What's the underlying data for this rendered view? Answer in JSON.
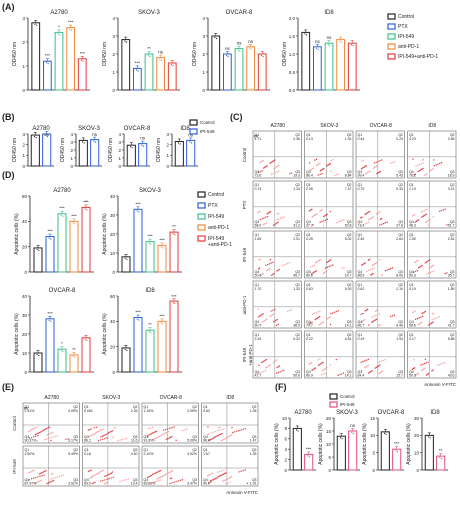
{
  "panel_labels": {
    "A": "(A)",
    "B": "(B)",
    "C": "(C)",
    "D": "(D)",
    "E": "(E)",
    "F": "(F)"
  },
  "colors": {
    "Control": "#222222",
    "PTX": "#2b5fd9",
    "IPI-549": "#3dbf8a",
    "anti-PD-1": "#f08a3c",
    "IPI-549+anti-PD-1": "#e03a3a",
    "F_control": "#222222",
    "F_ipi": "#e0507a"
  },
  "panelA": {
    "legend": [
      "Control",
      "PTX",
      "IPI-549",
      "anti-PD-1",
      "IPI-549+anti-PD-1"
    ],
    "ylabel": "OD450 nm",
    "charts": [
      {
        "title": "A2780",
        "values": [
          2.8,
          1.2,
          2.4,
          2.6,
          1.3
        ],
        "ylim": [
          0,
          3
        ],
        "yticks": [
          "0",
          "1",
          "2",
          "3"
        ],
        "sig": [
          "***",
          "*",
          "***",
          "***"
        ]
      },
      {
        "title": "SKOV-3",
        "values": [
          2.8,
          1.2,
          2.0,
          1.8,
          1.5
        ],
        "ylim": [
          0,
          4
        ],
        "yticks": [
          "0",
          "1",
          "2",
          "3",
          "4"
        ],
        "sig": [
          "***",
          "**",
          "ns"
        ]
      },
      {
        "title": "OVCAR-8",
        "values": [
          3.0,
          2.0,
          2.3,
          2.4,
          2.0
        ],
        "ylim": [
          0,
          4
        ],
        "yticks": [
          "0",
          "1",
          "2",
          "3",
          "4"
        ],
        "sig": [
          "ns",
          "ns",
          "ns"
        ]
      },
      {
        "title": "ID8",
        "values": [
          1.6,
          1.2,
          1.3,
          1.4,
          1.3
        ],
        "ylim": [
          0,
          2
        ],
        "yticks": [
          "0.0",
          "0.5",
          "1.0",
          "1.5",
          "2.0"
        ],
        "sig": [
          "ns",
          "ns"
        ]
      }
    ]
  },
  "panelB": {
    "legend": [
      "Control",
      "IPI-549"
    ],
    "ylabel": "OD450 nm",
    "charts": [
      {
        "title": "A2780",
        "values": [
          2.9,
          3.0
        ],
        "yticks": [
          "0",
          "1",
          "2",
          "3"
        ],
        "sig": "ns"
      },
      {
        "title": "SKOV-3",
        "values": [
          3.2,
          3.3
        ],
        "yticks": [
          "0",
          "1",
          "2",
          "3",
          "4"
        ],
        "sig": "ns"
      },
      {
        "title": "OVCAR-8",
        "values": [
          2.6,
          2.8
        ],
        "yticks": [
          "0",
          "1",
          "2",
          "3",
          "4"
        ],
        "sig": "ns"
      },
      {
        "title": "ID8",
        "values": [
          2.3,
          2.4
        ],
        "yticks": [
          "0",
          "1",
          "2",
          "3"
        ],
        "sig": "ns"
      }
    ]
  },
  "panelC": {
    "cols": [
      "A2780",
      "SKOV-3",
      "OVCAR-8",
      "ID8"
    ],
    "rows": [
      "Control",
      "PTX",
      "IPI-549",
      "anti-PD-1",
      "IPI-549\n+anti-PD-1"
    ],
    "xlabel": "Annexin V-FITC",
    "ylabel": "PI",
    "quads": [
      [
        [
          "4.71",
          "2.36",
          "73.6",
          "19.3"
        ],
        [
          "0.13",
          "1.92",
          "88.4",
          "8.84"
        ],
        [
          "0.44",
          "0.23",
          "99.4",
          "5.43"
        ],
        [
          "4.23",
          "0.96",
          "76.2",
          "18.9"
        ]
      ],
      [
        [
          "0.74",
          "1.24",
          "68.0",
          "31.2"
        ],
        [
          "2.05",
          "7.47",
          "37.7",
          "52.8"
        ],
        [
          "0.79",
          "0.33",
          "71.1",
          "27.8"
        ],
        [
          "1.13",
          "3.21",
          "48.3",
          "51.7"
        ]
      ],
      [
        [
          "1.65",
          "2.01",
          "50.8",
          "45.7"
        ],
        [
          "0.25",
          "5.02",
          "80.8",
          "14.7"
        ],
        [
          "2.49",
          "2.64",
          "86.9",
          "8.00"
        ],
        [
          "1.50",
          "2.52",
          "60.3",
          "35.7"
        ]
      ],
      [
        [
          "1.70",
          "1.32",
          "60.7",
          "38.5"
        ],
        [
          "0.63",
          "5.93",
          "79.7",
          "14.1"
        ],
        [
          "0.62",
          "2.19",
          "86.7",
          "9.46"
        ],
        [
          "0.19",
          "1.55",
          "58.6",
          "41.7"
        ]
      ],
      [
        [
          "2.34",
          "5.32",
          "41.7",
          "50.6"
        ],
        [
          "0.22",
          "6.51",
          "80.9",
          "14.1"
        ],
        [
          "0.19",
          "1.94",
          "84.4",
          "15.7"
        ],
        [
          "0.17",
          "5.86",
          "50.3",
          "43.6"
        ]
      ]
    ]
  },
  "panelD": {
    "legend": [
      "Control",
      "PTX",
      "IPI-549",
      "anti-PD-1",
      "IPI-549\n+anti-PD-1"
    ],
    "ylabel": "Apoptotic cells (%)",
    "charts": [
      {
        "title": "A2780",
        "values": [
          19,
          28,
          46,
          40,
          51
        ],
        "ylim": [
          0,
          60
        ],
        "yticks": [
          "0",
          "20",
          "40",
          "60"
        ],
        "sig": [
          "***",
          "***",
          "***",
          "***",
          "*"
        ]
      },
      {
        "title": "SKOV-3",
        "values": [
          8,
          33,
          16,
          14,
          21
        ],
        "ylim": [
          0,
          40
        ],
        "yticks": [
          "0",
          "10",
          "20",
          "30",
          "40"
        ],
        "sig": [
          "***",
          "***",
          "***",
          "**"
        ]
      },
      {
        "title": "OVCAR-8",
        "values": [
          10,
          28,
          12,
          9,
          18
        ],
        "ylim": [
          0,
          40
        ],
        "yticks": [
          "0",
          "10",
          "20",
          "30",
          "40"
        ],
        "sig": [
          "***",
          "*",
          "**"
        ]
      },
      {
        "title": "ID8",
        "values": [
          19,
          43,
          33,
          40,
          56
        ],
        "ylim": [
          0,
          60
        ],
        "yticks": [
          "0",
          "20",
          "40",
          "60"
        ],
        "sig": [
          "***",
          "**",
          "***",
          "***"
        ]
      }
    ]
  },
  "panelE": {
    "cols": [
      "A2780",
      "SKOV-3",
      "OVCAR-8",
      "ID8"
    ],
    "rows": [
      "Control",
      "IPI-549"
    ],
    "xlabel": "Annexin V-FITC",
    "ylabel": "PI",
    "quads": [
      [
        [
          "2.41%",
          "4.05%",
          "90.37%",
          "3.17%"
        ],
        [
          "0.062",
          "2.26",
          "86.2",
          "11.6"
        ],
        [
          "1.15%",
          "2.99%",
          "91.8%",
          "5.09%"
        ],
        [
          "0.83",
          "1.05",
          "98.0",
          "1.47"
        ]
      ],
      [
        [
          "2.50%",
          "5.49%",
          "87.97%",
          "3.51%"
        ],
        [
          "0.16",
          "4.40",
          "83.0",
          "13.4"
        ],
        [
          "2.10%",
          "4.92%",
          "89.51%",
          "3.47%"
        ],
        [
          "1.57",
          "1.28",
          "96.6",
          "1.01"
        ]
      ]
    ]
  },
  "panelF": {
    "legend": [
      "Control",
      "IPI-549"
    ],
    "ylabel": "Apoptotic cells (%)",
    "charts": [
      {
        "title": "A2780",
        "values": [
          8,
          3
        ],
        "ylim": [
          0,
          10
        ],
        "yticks": [
          "0",
          "2",
          "4",
          "6",
          "8",
          "10"
        ],
        "sig": "***"
      },
      {
        "title": "SKOV-3",
        "values": [
          13,
          15
        ],
        "ylim": [
          0,
          20
        ],
        "yticks": [
          "0",
          "5",
          "10",
          "15",
          "20"
        ],
        "sig": "ns"
      },
      {
        "title": "OVCAR-8",
        "values": [
          11,
          6
        ],
        "ylim": [
          0,
          15
        ],
        "yticks": [
          "0",
          "5",
          "10",
          "15"
        ],
        "sig": "***"
      },
      {
        "title": "ID8",
        "values": [
          20,
          8
        ],
        "ylim": [
          0,
          30
        ],
        "yticks": [
          "0",
          "10",
          "20",
          "30"
        ],
        "sig": "**"
      }
    ]
  },
  "chart_data": [
    {
      "type": "bar",
      "panel": "A",
      "title": "A2780",
      "categories": [
        "Control",
        "PTX",
        "IPI-549",
        "anti-PD-1",
        "IPI-549+anti-PD-1"
      ],
      "values": [
        2.8,
        1.2,
        2.4,
        2.6,
        1.3
      ],
      "ylabel": "OD450 nm",
      "ylim": [
        0,
        3
      ]
    },
    {
      "type": "bar",
      "panel": "A",
      "title": "SKOV-3",
      "categories": [
        "Control",
        "PTX",
        "IPI-549",
        "anti-PD-1",
        "IPI-549+anti-PD-1"
      ],
      "values": [
        2.8,
        1.2,
        2.0,
        1.8,
        1.5
      ],
      "ylabel": "OD450 nm",
      "ylim": [
        0,
        4
      ]
    },
    {
      "type": "bar",
      "panel": "A",
      "title": "OVCAR-8",
      "categories": [
        "Control",
        "PTX",
        "IPI-549",
        "anti-PD-1",
        "IPI-549+anti-PD-1"
      ],
      "values": [
        3.0,
        2.0,
        2.3,
        2.4,
        2.0
      ],
      "ylabel": "OD450 nm",
      "ylim": [
        0,
        4
      ]
    },
    {
      "type": "bar",
      "panel": "A",
      "title": "ID8",
      "categories": [
        "Control",
        "PTX",
        "IPI-549",
        "anti-PD-1",
        "IPI-549+anti-PD-1"
      ],
      "values": [
        1.6,
        1.2,
        1.3,
        1.4,
        1.3
      ],
      "ylabel": "OD450 nm",
      "ylim": [
        0,
        2
      ]
    },
    {
      "type": "bar",
      "panel": "D",
      "title": "A2780",
      "categories": [
        "Control",
        "PTX",
        "IPI-549",
        "anti-PD-1",
        "IPI-549+anti-PD-1"
      ],
      "values": [
        19,
        28,
        46,
        40,
        51
      ],
      "ylabel": "Apoptotic cells (%)",
      "ylim": [
        0,
        60
      ]
    },
    {
      "type": "bar",
      "panel": "D",
      "title": "SKOV-3",
      "categories": [
        "Control",
        "PTX",
        "IPI-549",
        "anti-PD-1",
        "IPI-549+anti-PD-1"
      ],
      "values": [
        8,
        33,
        16,
        14,
        21
      ],
      "ylabel": "Apoptotic cells (%)",
      "ylim": [
        0,
        40
      ]
    },
    {
      "type": "bar",
      "panel": "D",
      "title": "OVCAR-8",
      "categories": [
        "Control",
        "PTX",
        "IPI-549",
        "anti-PD-1",
        "IPI-549+anti-PD-1"
      ],
      "values": [
        10,
        28,
        12,
        9,
        18
      ],
      "ylabel": "Apoptotic cells (%)",
      "ylim": [
        0,
        40
      ]
    },
    {
      "type": "bar",
      "panel": "D",
      "title": "ID8",
      "categories": [
        "Control",
        "PTX",
        "IPI-549",
        "anti-PD-1",
        "IPI-549+anti-PD-1"
      ],
      "values": [
        19,
        43,
        33,
        40,
        56
      ],
      "ylabel": "Apoptotic cells (%)",
      "ylim": [
        0,
        60
      ]
    },
    {
      "type": "bar",
      "panel": "F",
      "title": "A2780",
      "categories": [
        "Control",
        "IPI-549"
      ],
      "values": [
        8,
        3
      ],
      "ylabel": "Apoptotic cells (%)",
      "ylim": [
        0,
        10
      ]
    },
    {
      "type": "bar",
      "panel": "F",
      "title": "SKOV-3",
      "categories": [
        "Control",
        "IPI-549"
      ],
      "values": [
        13,
        15
      ],
      "ylabel": "Apoptotic cells (%)",
      "ylim": [
        0,
        20
      ]
    },
    {
      "type": "bar",
      "panel": "F",
      "title": "OVCAR-8",
      "categories": [
        "Control",
        "IPI-549"
      ],
      "values": [
        11,
        6
      ],
      "ylabel": "Apoptotic cells (%)",
      "ylim": [
        0,
        15
      ]
    },
    {
      "type": "bar",
      "panel": "F",
      "title": "ID8",
      "categories": [
        "Control",
        "IPI-549"
      ],
      "values": [
        20,
        8
      ],
      "ylabel": "Apoptotic cells (%)",
      "ylim": [
        0,
        30
      ]
    }
  ]
}
